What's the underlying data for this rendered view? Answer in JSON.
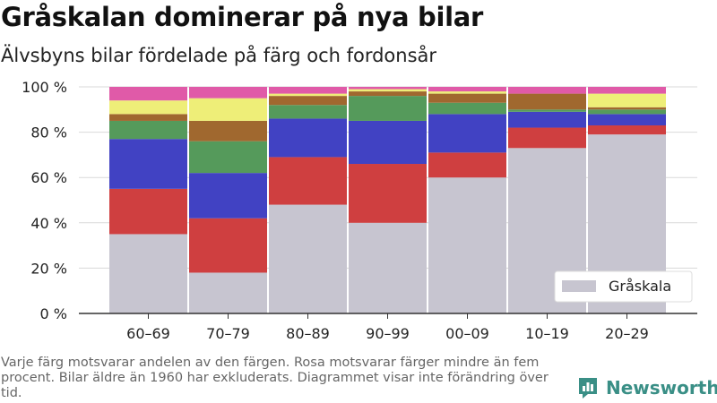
{
  "title": "Gråskalan dominerar på nya bilar",
  "subtitle": "Älvsbyns bilar fördelade på färg och fordonsår",
  "footnote": "Varje färg motsvarar andelen av den färgen. Rosa motsvarar färger mindre än fem procent. Bilar äldre än 1960 har exkluderats. Diagrammet visar inte förändring över tid.",
  "brand": "Newsworthy",
  "chart_data": {
    "type": "bar",
    "stacked": true,
    "categories": [
      "60–69",
      "70–79",
      "80–89",
      "90–99",
      "00–09",
      "10–19",
      "20–29"
    ],
    "yticks": [
      "0 %",
      "20 %",
      "40 %",
      "60 %",
      "80 %",
      "100 %"
    ],
    "ylim": [
      0,
      100
    ],
    "legend": {
      "label": "Gråskala",
      "placement": "bottom-right"
    },
    "series": [
      {
        "name": "Gråskala",
        "color": "#c7c5d0",
        "values": [
          35,
          18,
          48,
          40,
          60,
          73,
          79
        ]
      },
      {
        "color": "#cf3f40",
        "values": [
          20,
          24,
          21,
          26,
          11,
          9,
          4
        ]
      },
      {
        "color": "#4142c3",
        "values": [
          22,
          20,
          17,
          19,
          17,
          7,
          5
        ]
      },
      {
        "color": "#559a5b",
        "values": [
          8,
          14,
          6,
          11,
          5,
          1,
          2
        ]
      },
      {
        "color": "#a0682f",
        "values": [
          3,
          9,
          4,
          2,
          4,
          7,
          1
        ]
      },
      {
        "color": "#eeee78",
        "values": [
          6,
          10,
          1,
          1,
          1,
          0,
          6
        ]
      },
      {
        "color": "#e05aa8",
        "values": [
          6,
          5,
          3,
          1,
          2,
          3,
          3
        ]
      }
    ]
  }
}
